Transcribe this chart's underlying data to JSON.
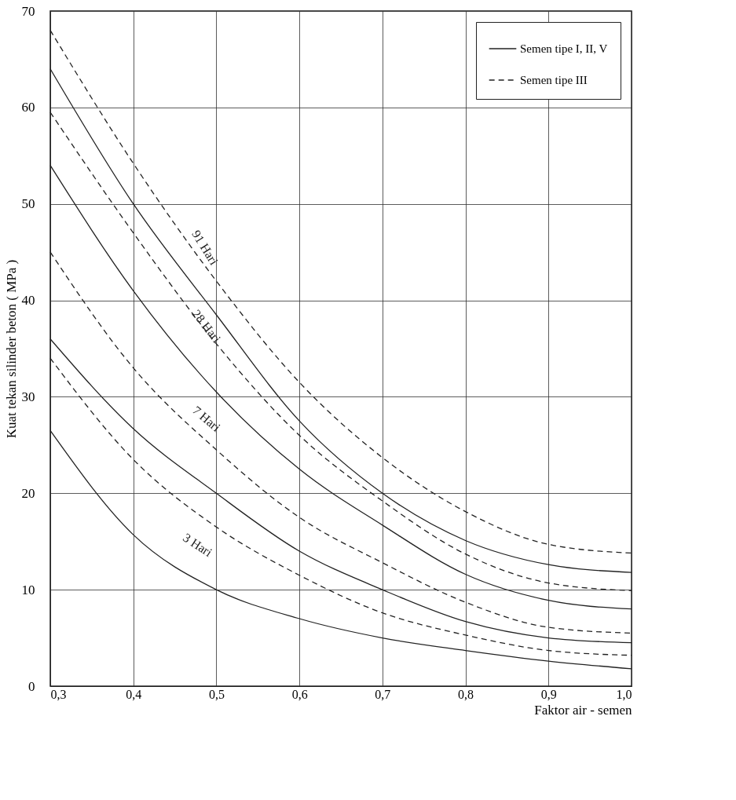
{
  "chart_data": {
    "type": "line",
    "xlabel": "Faktor air - semen",
    "ylabel": "Kuat tekan silinder beton ( MPa )",
    "x": [
      0.3,
      0.4,
      0.5,
      0.6,
      0.7,
      0.8,
      0.9,
      1.0
    ],
    "series": [
      {
        "name": "Semen tipe I, II, V",
        "color": "#222222",
        "line_style": "solid",
        "values": [
          64,
          50,
          38.5,
          27.5,
          20,
          15.1,
          12.6,
          11.8
        ]
      },
      {
        "name": "Semen tipe III",
        "color": "#222222",
        "line_style": "dashed",
        "values": [
          68,
          54.2,
          42,
          31.5,
          23.7,
          18.1,
          14.7,
          13.8
        ]
      },
      {
        "color": "#222222",
        "line_style": "solid",
        "values": [
          54,
          41,
          30.5,
          22.5,
          16.7,
          11.6,
          8.9,
          8.0
        ]
      },
      {
        "color": "#222222",
        "line_style": "dashed",
        "values": [
          59.5,
          47,
          35.5,
          26,
          19.2,
          13.7,
          10.7,
          9.9
        ]
      },
      {
        "color": "#222222",
        "line_style": "solid",
        "values": [
          36,
          26.7,
          20,
          14,
          10,
          6.7,
          5.0,
          4.5
        ]
      },
      {
        "color": "#222222",
        "line_style": "dashed",
        "values": [
          45,
          33,
          24.5,
          17.5,
          12.8,
          8.7,
          6.1,
          5.5
        ]
      },
      {
        "color": "#222222",
        "line_style": "solid",
        "values": [
          26.5,
          15.7,
          10,
          7,
          5.0,
          3.7,
          2.6,
          1.8
        ]
      },
      {
        "color": "#222222",
        "line_style": "dashed",
        "values": [
          34,
          23.5,
          16.5,
          11.5,
          7.6,
          5.3,
          3.7,
          3.2
        ]
      }
    ],
    "annotations": [
      "91 Hari",
      "28 Hari",
      "7 Hari",
      "3 Hari"
    ],
    "xlim": [
      0.3,
      1.0
    ],
    "xticks": [
      {
        "value": 0.3,
        "label": "0,3"
      },
      {
        "value": 0.4,
        "label": "0,4"
      },
      {
        "value": 0.5,
        "label": "0,5"
      },
      {
        "value": 0.6,
        "label": "0,6"
      },
      {
        "value": 0.7,
        "label": "0,7"
      },
      {
        "value": 0.8,
        "label": "0,8"
      },
      {
        "value": 0.9,
        "label": "0,9"
      },
      {
        "value": 1.0,
        "label": "1,0"
      }
    ],
    "ylim": [
      0,
      70
    ],
    "yticks": [
      0,
      10,
      20,
      30,
      40,
      50,
      60,
      70
    ],
    "grid": true,
    "legend": "top right",
    "marker": "none"
  }
}
